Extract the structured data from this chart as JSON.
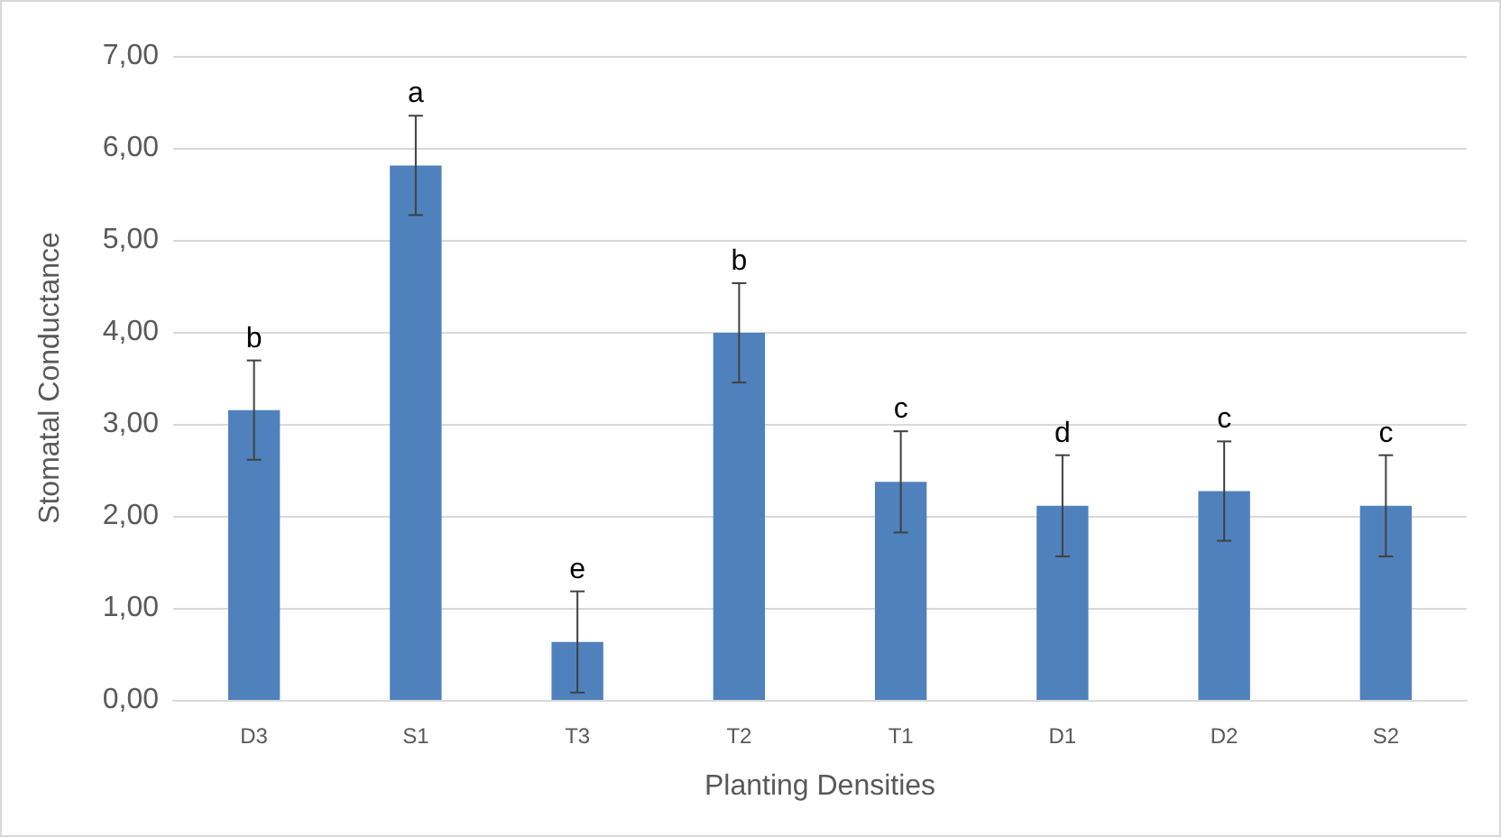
{
  "chart_data": {
    "type": "bar",
    "xlabel": "Planting Densities",
    "ylabel": "Stomatal Conductance",
    "categories": [
      "D3",
      "S1",
      "T3",
      "T2",
      "T1",
      "D1",
      "D2",
      "S2"
    ],
    "values": [
      3.15,
      5.81,
      0.63,
      3.99,
      2.37,
      2.11,
      2.27,
      2.11
    ],
    "errors": [
      0.54,
      0.54,
      0.55,
      0.54,
      0.55,
      0.55,
      0.54,
      0.55
    ],
    "color": "#4f81bd",
    "ylim": [
      0,
      7
    ],
    "yticks": [
      {
        "value": 0,
        "label": "0,00"
      },
      {
        "value": 1,
        "label": "1,00"
      },
      {
        "value": 2,
        "label": "2,00"
      },
      {
        "value": 3,
        "label": "3,00"
      },
      {
        "value": 4,
        "label": "4,00"
      },
      {
        "value": 5,
        "label": "5,00"
      },
      {
        "value": 6,
        "label": "6,00"
      },
      {
        "value": 7,
        "label": "7,00"
      }
    ],
    "grid": "y",
    "annotations": [
      {
        "text": "b",
        "x": "D3",
        "y": 3.69
      },
      {
        "text": "a",
        "x": "S1",
        "y": 6.35
      },
      {
        "text": "e",
        "x": "T3",
        "y": 1.18
      },
      {
        "text": "b",
        "x": "T2",
        "y": 4.53
      },
      {
        "text": "c",
        "x": "T1",
        "y": 2.92
      },
      {
        "text": "d",
        "x": "D1",
        "y": 2.66
      },
      {
        "text": "c",
        "x": "D2",
        "y": 2.81
      },
      {
        "text": "c",
        "x": "S2",
        "y": 2.66
      }
    ]
  }
}
